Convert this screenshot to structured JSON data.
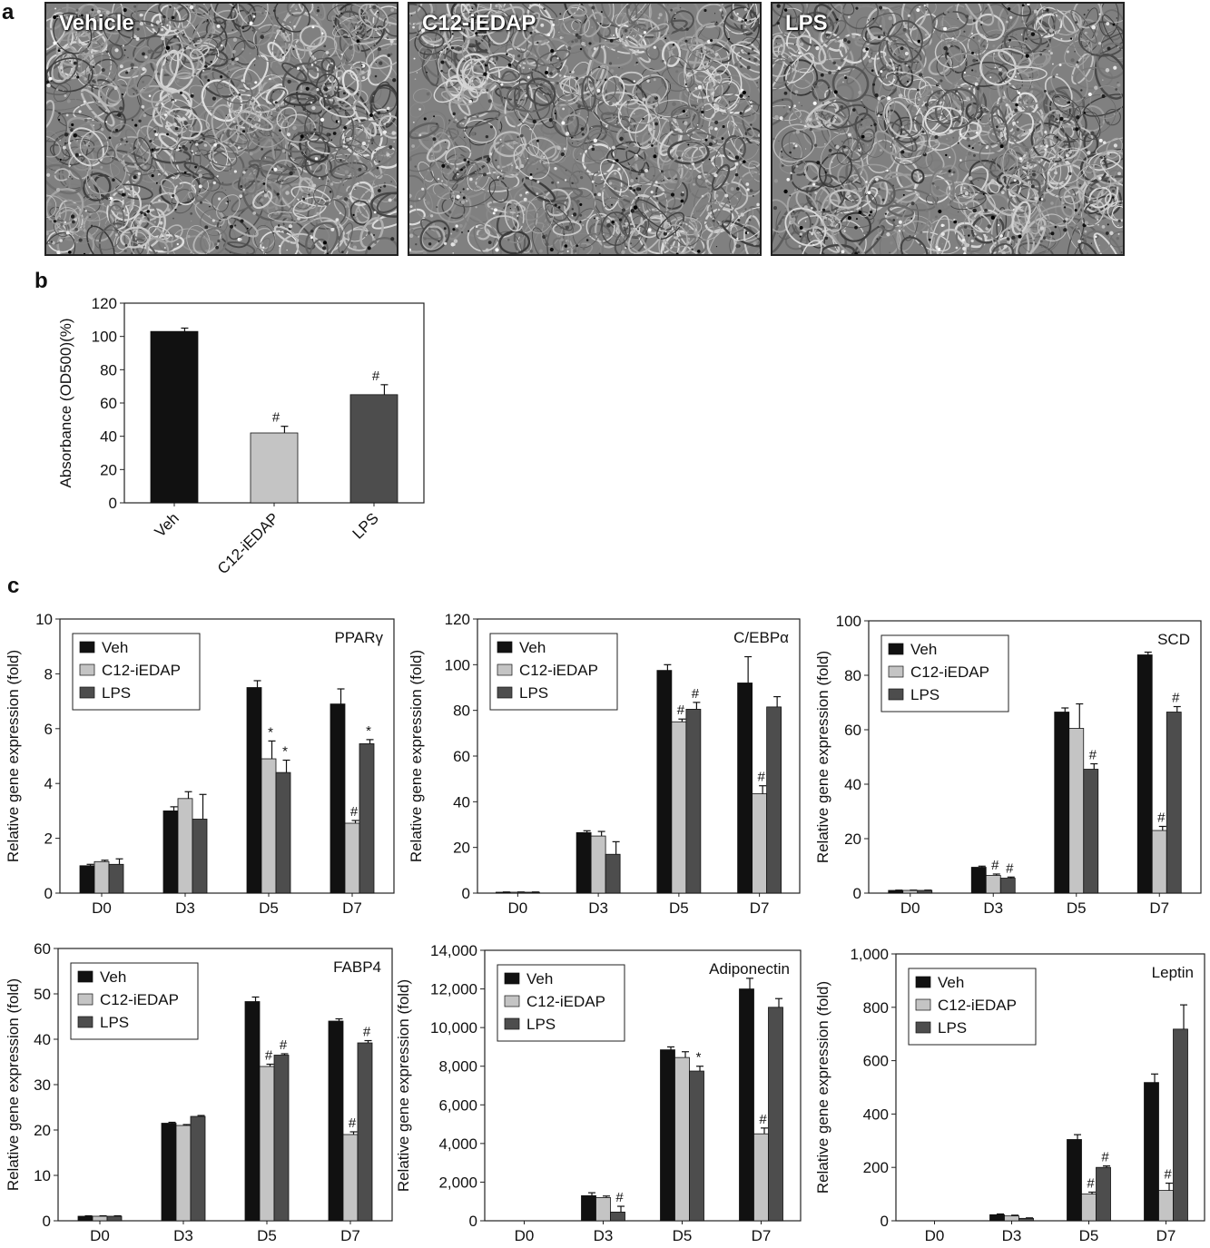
{
  "panel_labels": {
    "a": "a",
    "b": "b",
    "c": "c"
  },
  "micrographs": [
    {
      "label": "Vehicle",
      "icon": "micrograph-image"
    },
    {
      "label": "C12-iEDAP",
      "icon": "micrograph-image"
    },
    {
      "label": "LPS",
      "icon": "micrograph-image"
    }
  ],
  "colors": {
    "veh": "#111111",
    "c12": "#c4c4c4",
    "lps": "#4d4d4d",
    "axis": "#222222"
  },
  "chart_data": [
    {
      "id": "b",
      "type": "bar",
      "title": "",
      "xlabel": "",
      "ylabel": "Absorbance (OD500)(%)",
      "categories": [
        "Veh",
        "C12-iEDAP",
        "LPS"
      ],
      "values": [
        103,
        42,
        65
      ],
      "errors": [
        2,
        4,
        6
      ],
      "annotations": [
        "",
        "#",
        "#"
      ],
      "ylim": [
        0,
        120
      ],
      "yticks": [
        "0",
        "20",
        "40",
        "60",
        "80",
        "100",
        "120"
      ],
      "legend": null,
      "grid": false
    },
    {
      "id": "pparg",
      "type": "bar",
      "title": "PPARγ",
      "xlabel": "",
      "ylabel": "Relative gene expression (fold)",
      "categories": [
        "D0",
        "D3",
        "D5",
        "D7"
      ],
      "series": [
        {
          "name": "Veh",
          "values": [
            1.0,
            3.0,
            7.5,
            6.9
          ],
          "errors": [
            0.05,
            0.15,
            0.25,
            0.55
          ],
          "annotations": [
            "",
            "",
            "",
            ""
          ]
        },
        {
          "name": "C12-iEDAP",
          "values": [
            1.15,
            3.45,
            4.9,
            2.55
          ],
          "errors": [
            0.05,
            0.25,
            0.65,
            0.1
          ],
          "annotations": [
            "",
            "",
            "*",
            "#"
          ]
        },
        {
          "name": "LPS",
          "values": [
            1.05,
            2.7,
            4.4,
            5.45
          ],
          "errors": [
            0.2,
            0.9,
            0.45,
            0.15
          ],
          "annotations": [
            "",
            "",
            "*",
            "*"
          ]
        }
      ],
      "ylim": [
        0,
        10
      ],
      "yticks": [
        "0",
        "2",
        "4",
        "6",
        "8",
        "10"
      ],
      "legend": "top-left",
      "grid": false
    },
    {
      "id": "cebpa",
      "type": "bar",
      "title": "C/EBPα",
      "xlabel": "",
      "ylabel": "Relative gene expression (fold)",
      "categories": [
        "D0",
        "D3",
        "D5",
        "D7"
      ],
      "series": [
        {
          "name": "Veh",
          "values": [
            0.4,
            26.5,
            97.5,
            92
          ],
          "errors": [
            0.1,
            0.8,
            2.5,
            11.5
          ],
          "annotations": [
            "",
            "",
            "",
            ""
          ]
        },
        {
          "name": "C12-iEDAP",
          "values": [
            0.4,
            25,
            75,
            43.5
          ],
          "errors": [
            0.1,
            2,
            1.2,
            3.5
          ],
          "annotations": [
            "",
            "",
            "#",
            "#"
          ]
        },
        {
          "name": "LPS",
          "values": [
            0.4,
            17,
            80.5,
            81.5
          ],
          "errors": [
            0.1,
            5.5,
            3,
            4.5
          ],
          "annotations": [
            "",
            "",
            "#",
            ""
          ]
        }
      ],
      "ylim": [
        0,
        120
      ],
      "yticks": [
        "0",
        "20",
        "40",
        "60",
        "80",
        "100",
        "120"
      ],
      "legend": "top-left",
      "grid": false
    },
    {
      "id": "scd",
      "type": "bar",
      "title": "SCD",
      "xlabel": "",
      "ylabel": "Relative gene expression (fold)",
      "categories": [
        "D0",
        "D3",
        "D5",
        "D7"
      ],
      "series": [
        {
          "name": "Veh",
          "values": [
            1.0,
            9.5,
            66.5,
            87.5
          ],
          "errors": [
            0.1,
            0.4,
            1.5,
            1
          ],
          "annotations": [
            "",
            "",
            "",
            ""
          ]
        },
        {
          "name": "C12-iEDAP",
          "values": [
            1.0,
            6.5,
            60.5,
            23
          ],
          "errors": [
            0.1,
            0.5,
            9,
            1.5
          ],
          "annotations": [
            "",
            "#",
            "",
            "#"
          ]
        },
        {
          "name": "LPS",
          "values": [
            1.0,
            5.5,
            45.5,
            66.5
          ],
          "errors": [
            0.1,
            0.4,
            2,
            2
          ],
          "annotations": [
            "",
            "#",
            "#",
            "#"
          ]
        }
      ],
      "ylim": [
        0,
        100
      ],
      "yticks": [
        "0",
        "20",
        "40",
        "60",
        "80",
        "100"
      ],
      "legend": "top-left",
      "grid": false
    },
    {
      "id": "fabp4",
      "type": "bar",
      "title": "FABP4",
      "xlabel": "",
      "ylabel": "Relative gene expression (fold)",
      "categories": [
        "D0",
        "D3",
        "D5",
        "D7"
      ],
      "series": [
        {
          "name": "Veh",
          "values": [
            1.0,
            21.5,
            48.3,
            44
          ],
          "errors": [
            0.1,
            0.2,
            1,
            0.5
          ],
          "annotations": [
            "",
            "",
            "",
            ""
          ]
        },
        {
          "name": "C12-iEDAP",
          "values": [
            1.0,
            21,
            34,
            19
          ],
          "errors": [
            0.1,
            0.2,
            0.5,
            0.6
          ],
          "annotations": [
            "",
            "",
            "#",
            "#"
          ]
        },
        {
          "name": "LPS",
          "values": [
            1.0,
            23,
            36.5,
            39.2
          ],
          "errors": [
            0.1,
            0.2,
            0.3,
            0.5
          ],
          "annotations": [
            "",
            "",
            "#",
            "#"
          ]
        }
      ],
      "ylim": [
        0,
        60
      ],
      "yticks": [
        "0",
        "10",
        "20",
        "30",
        "40",
        "50",
        "60"
      ],
      "legend": "top-left",
      "grid": false
    },
    {
      "id": "adiponectin",
      "type": "bar",
      "title": "Adiponectin",
      "xlabel": "",
      "ylabel": "Relative gene expression (fold)",
      "categories": [
        "D0",
        "D3",
        "D5",
        "D7"
      ],
      "series": [
        {
          "name": "Veh",
          "values": [
            0,
            1300,
            8850,
            12000
          ],
          "errors": [
            0,
            150,
            150,
            550
          ],
          "annotations": [
            "",
            "",
            "",
            ""
          ]
        },
        {
          "name": "C12-iEDAP",
          "values": [
            0,
            1200,
            8450,
            4500
          ],
          "errors": [
            0,
            80,
            300,
            300
          ],
          "annotations": [
            "",
            "",
            "",
            "#"
          ]
        },
        {
          "name": "LPS",
          "values": [
            0,
            450,
            7750,
            11050
          ],
          "errors": [
            0,
            300,
            250,
            450
          ],
          "annotations": [
            "",
            "#",
            "*",
            ""
          ]
        }
      ],
      "ylim": [
        0,
        14000
      ],
      "yticks": [
        "0",
        "2,000",
        "4,000",
        "6,000",
        "8,000",
        "10,000",
        "12,000",
        "14,000"
      ],
      "legend": "top-left",
      "grid": false
    },
    {
      "id": "leptin",
      "type": "bar",
      "title": "Leptin",
      "xlabel": "",
      "ylabel": "Relative gene expression (fold)",
      "categories": [
        "D0",
        "D3",
        "D5",
        "D7"
      ],
      "series": [
        {
          "name": "Veh",
          "values": [
            0,
            25,
            335,
            570
          ],
          "errors": [
            0,
            3,
            20,
            35
          ],
          "annotations": [
            "",
            "",
            "",
            ""
          ]
        },
        {
          "name": "C12-iEDAP",
          "values": [
            0,
            20,
            110,
            125
          ],
          "errors": [
            0,
            3,
            8,
            30
          ],
          "annotations": [
            "",
            "",
            "#",
            "#"
          ]
        },
        {
          "name": "LPS",
          "values": [
            0,
            10,
            220,
            790
          ],
          "errors": [
            0,
            2,
            6,
            100
          ],
          "annotations": [
            "",
            "",
            "#",
            ""
          ]
        }
      ],
      "ylim": [
        0,
        1100
      ],
      "yticks": [
        "0",
        "200",
        "400",
        "600",
        "800",
        "1,000"
      ],
      "legend": "top-left",
      "grid": false
    }
  ]
}
